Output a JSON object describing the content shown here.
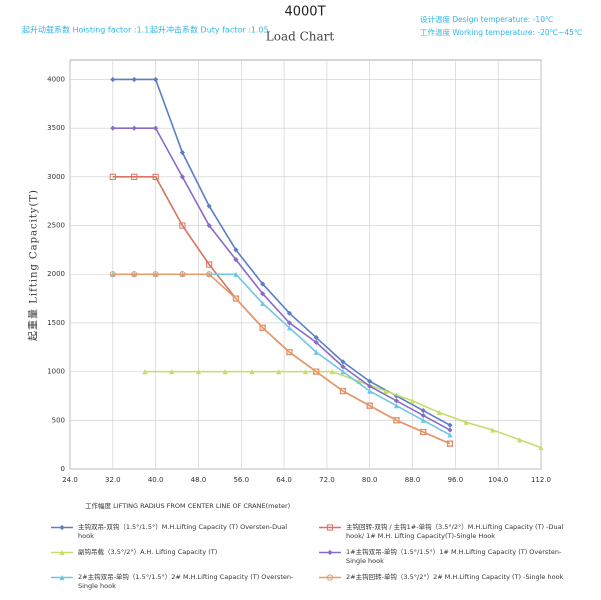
{
  "chart_data": {
    "type": "line",
    "title": "4000T",
    "subtitle": "Load Chart",
    "annotations": [
      "起升动载系数 Hoisting factor :1.1",
      "起升冲击系数 Duty factor :1.05",
      "设计温度 Design temperature: -10℃",
      "工作温度 Working temperature: -20℃~45℃"
    ],
    "x_label": "工作幅度 LIFTING RADIUS FROM CENTER LINE OF CRANE(meter)",
    "y_label": "起重量 Lifting Capacity(T)",
    "xlim": [
      24,
      112
    ],
    "xticks": [
      {
        "value": 24,
        "label": "24.0"
      },
      {
        "value": 32,
        "label": "32.0"
      },
      {
        "value": 40,
        "label": "40.0"
      },
      {
        "value": 48,
        "label": "48.0"
      },
      {
        "value": 56,
        "label": "56.0"
      },
      {
        "value": 64,
        "label": "64.0"
      },
      {
        "value": 72,
        "label": "72.0"
      },
      {
        "value": 80,
        "label": "80.0"
      },
      {
        "value": 88,
        "label": "88.0"
      },
      {
        "value": 96,
        "label": "96.0"
      },
      {
        "value": 104,
        "label": "104.0"
      },
      {
        "value": 112,
        "label": "112.0"
      }
    ],
    "ylim": [
      0,
      4200
    ],
    "yticks": [
      0,
      500,
      1000,
      1500,
      2000,
      2500,
      3000,
      3500,
      4000
    ],
    "grid": true,
    "series": [
      {
        "name": "主钩双吊-双钩（1.5°/1.5°）M.H.Lifting Capacity (T) Oversten-Dual hook",
        "color": "#5b7fc4",
        "marker": "diamond",
        "x": [
          32,
          36,
          40,
          45,
          50,
          55,
          60,
          65,
          70,
          75,
          80,
          85,
          90,
          95
        ],
        "values": [
          4000,
          4000,
          4000,
          3250,
          2700,
          2250,
          1900,
          1600,
          1350,
          1100,
          900,
          750,
          600,
          450
        ]
      },
      {
        "name": "主钩回转-双钩 / 主钩1#-单钩（3.5°/2°）M.H.Lifting Capacity (T) -Dual hook/ 1# M.H. Lifting Capacity(T)-Single Hook",
        "color": "#d9735f",
        "marker": "square",
        "x": [
          32,
          36,
          40,
          45,
          50,
          55,
          60,
          65,
          70,
          75,
          80,
          85,
          90,
          95
        ],
        "values": [
          3000,
          3000,
          3000,
          2500,
          2100,
          1750,
          1450,
          1200,
          1000,
          800,
          650,
          500,
          380,
          260
        ]
      },
      {
        "name": "副钩吊载（3.5°/2°）A.H. Lifting Capacity (T)",
        "color": "#c5de6a",
        "marker": "triangle",
        "x": [
          38,
          43,
          48,
          53,
          58,
          63,
          68,
          73,
          78,
          83,
          88,
          93,
          98,
          103,
          108,
          112
        ],
        "values": [
          1000,
          1000,
          1000,
          1000,
          1000,
          1000,
          1000,
          1000,
          900,
          800,
          700,
          580,
          480,
          400,
          300,
          220
        ]
      },
      {
        "name": "1#主钩双吊-单钩（1.5°/1.5°）1# M.H.Lifting Capacity (T) Oversten-Single hook",
        "color": "#8a6bc9",
        "marker": "diamond",
        "x": [
          32,
          36,
          40,
          45,
          50,
          55,
          60,
          65,
          70,
          75,
          80,
          85,
          90,
          95
        ],
        "values": [
          3500,
          3500,
          3500,
          3000,
          2500,
          2150,
          1800,
          1500,
          1300,
          1050,
          850,
          700,
          550,
          400
        ]
      },
      {
        "name": "2#主钩双吊-单钩（1.5°/1.5°）2# M.H.Lifting Capacity (T) Oversten-Single hook",
        "color": "#6cc7e6",
        "marker": "triangle",
        "x": [
          32,
          36,
          40,
          45,
          50,
          55,
          60,
          65,
          70,
          75,
          80,
          85,
          90,
          95
        ],
        "values": [
          2000,
          2000,
          2000,
          2000,
          2000,
          2000,
          1700,
          1450,
          1200,
          1000,
          800,
          650,
          500,
          350
        ]
      },
      {
        "name": "2#主钩回转-单钩（3.5°/2°）2# M.H.Lifting Capacity (T) -Single hook",
        "color": "#e59a68",
        "marker": "circle",
        "x": [
          32,
          36,
          40,
          45,
          50,
          55,
          60,
          65,
          70,
          75,
          80,
          85,
          90,
          95
        ],
        "values": [
          2000,
          2000,
          2000,
          2000,
          2000,
          1750,
          1450,
          1200,
          1000,
          800,
          650,
          500,
          380,
          260
        ]
      }
    ]
  }
}
